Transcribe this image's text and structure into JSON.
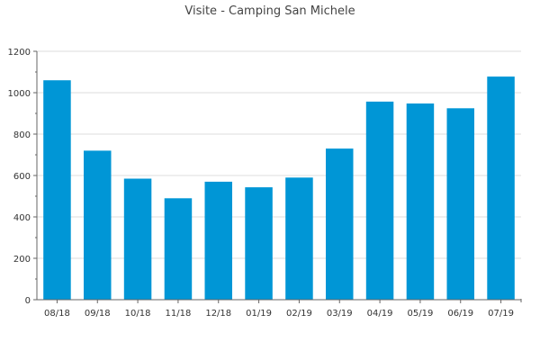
{
  "chart_data": {
    "type": "bar",
    "title": "Visite - Camping San Michele",
    "xlabel": "",
    "ylabel": "",
    "categories": [
      "08/18",
      "09/18",
      "10/18",
      "11/18",
      "12/18",
      "01/19",
      "02/19",
      "03/19",
      "04/19",
      "05/19",
      "06/19",
      "07/19"
    ],
    "values": [
      1060,
      720,
      585,
      490,
      570,
      543,
      590,
      730,
      957,
      948,
      925,
      1078
    ],
    "ylim": [
      0,
      1200
    ],
    "yticks": [
      0,
      200,
      400,
      600,
      800,
      1000,
      1200
    ],
    "grid": true,
    "legend": "none",
    "colors": {
      "bar": "#0096d6",
      "grid": "#dddddd",
      "axis": "#666666"
    }
  }
}
